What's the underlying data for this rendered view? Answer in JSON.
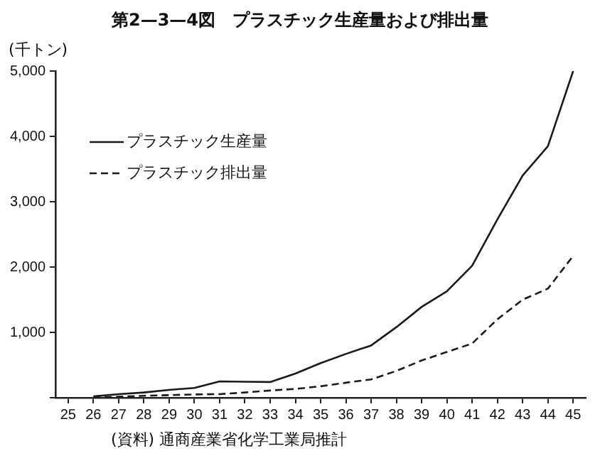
{
  "chart_data": {
    "type": "line",
    "title": "第2—3—4図　プラスチック生産量および排出量",
    "ylabel": "(千トン)",
    "annotations": [
      "(資料) 通商産業省化学工業局推計"
    ],
    "categories": [
      "25",
      "26",
      "27",
      "28",
      "29",
      "30",
      "31",
      "32",
      "33",
      "34",
      "35",
      "36",
      "37",
      "38",
      "39",
      "40",
      "41",
      "42",
      "43",
      "44",
      "45"
    ],
    "series": [
      {
        "name": "プラスチック生産量",
        "color": "#1a1a1a",
        "line_style": "solid",
        "values": [
          null,
          20,
          55,
          80,
          120,
          150,
          250,
          245,
          240,
          370,
          530,
          670,
          800,
          1080,
          1390,
          1630,
          2020,
          2730,
          3400,
          3850,
          5000
        ]
      },
      {
        "name": "プラスチック排出量",
        "color": "#1a1a1a",
        "line_style": "dashed",
        "values": [
          null,
          0,
          15,
          30,
          40,
          50,
          55,
          80,
          110,
          135,
          175,
          230,
          280,
          410,
          570,
          700,
          830,
          1200,
          1500,
          1670,
          2170
        ]
      }
    ],
    "ylim": [
      0,
      5000
    ],
    "yticks": [
      {
        "value": 0,
        "label": null
      },
      {
        "value": 1000,
        "label": "1,000"
      },
      {
        "value": 2000,
        "label": "2,000"
      },
      {
        "value": 3000,
        "label": "3,000"
      },
      {
        "value": 4000,
        "label": "4,000"
      },
      {
        "value": 5000,
        "label": "5,000"
      }
    ],
    "grid": false,
    "legend": "top left",
    "marker": "none"
  }
}
